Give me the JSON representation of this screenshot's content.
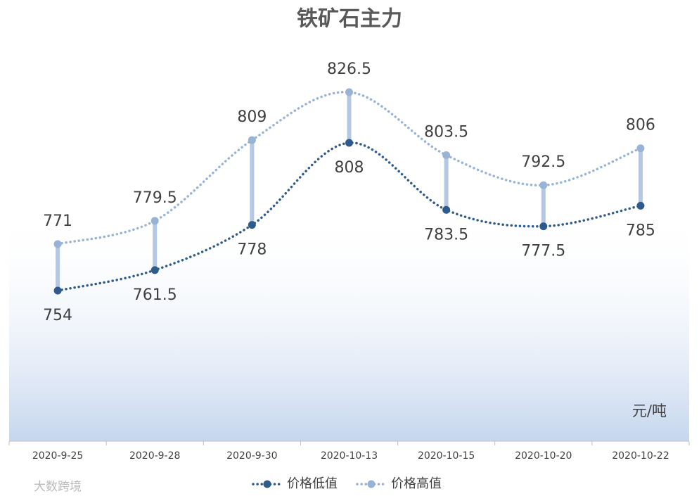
{
  "chart_data": {
    "type": "line",
    "title": "铁矿石主力",
    "unit_label": "元/吨",
    "watermark": "大数跨境",
    "categories": [
      "2020-9-25",
      "2020-9-28",
      "2020-9-30",
      "2020-10-13",
      "2020-10-15",
      "2020-10-20",
      "2020-10-22"
    ],
    "series": [
      {
        "name": "价格低值",
        "color": "#2f5b8c",
        "values": [
          754,
          761.5,
          778,
          808,
          783.5,
          777.5,
          785
        ]
      },
      {
        "name": "价格高值",
        "color": "#98b3d6",
        "values": [
          771,
          779.5,
          809,
          826.5,
          803.5,
          792.5,
          806
        ]
      }
    ]
  }
}
